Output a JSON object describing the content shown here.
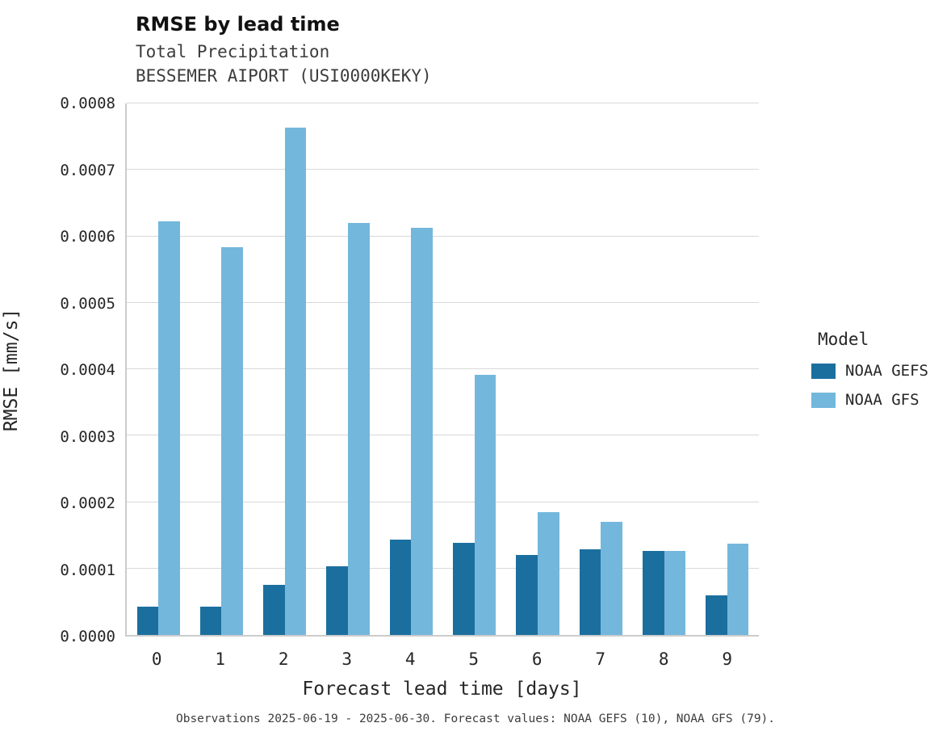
{
  "header": {
    "title": "RMSE by lead time",
    "subtitle1": "Total Precipitation",
    "subtitle2": "BESSEMER AIPORT (USI0000KEKY)"
  },
  "footer": {
    "caption": "Observations 2025-06-19 - 2025-06-30. Forecast values: NOAA GEFS (10), NOAA GFS (79)."
  },
  "chart_data": {
    "type": "bar",
    "title": "RMSE by lead time",
    "subtitle": "Total Precipitation — BESSEMER AIPORT (USI0000KEKY)",
    "xlabel": "Forecast lead time [days]",
    "ylabel": "RMSE [mm/s]",
    "categories": [
      "0",
      "1",
      "2",
      "3",
      "4",
      "5",
      "6",
      "7",
      "8",
      "9"
    ],
    "series": [
      {
        "name": "NOAA GEFS",
        "color": "#1b6f9e",
        "values": [
          4.2e-05,
          4.2e-05,
          7.5e-05,
          0.000103,
          0.000144,
          0.000139,
          0.00012,
          0.000129,
          0.000126,
          6e-05
        ]
      },
      {
        "name": "NOAA GFS",
        "color": "#74b7dc",
        "values": [
          0.000623,
          0.000583,
          0.000763,
          0.00062,
          0.000613,
          0.000391,
          0.000185,
          0.00017,
          0.000126,
          0.000138
        ]
      }
    ],
    "ylim": [
      0.0,
      0.0008
    ],
    "yticks": [
      0.0,
      0.0001,
      0.0002,
      0.0003,
      0.0004,
      0.0005,
      0.0006,
      0.0007,
      0.0008
    ],
    "ytick_labels": [
      "0.0000",
      "0.0001",
      "0.0002",
      "0.0003",
      "0.0004",
      "0.0005",
      "0.0006",
      "0.0007",
      "0.0008"
    ],
    "grid": true,
    "legend_title": "Model",
    "legend_position": "right"
  }
}
